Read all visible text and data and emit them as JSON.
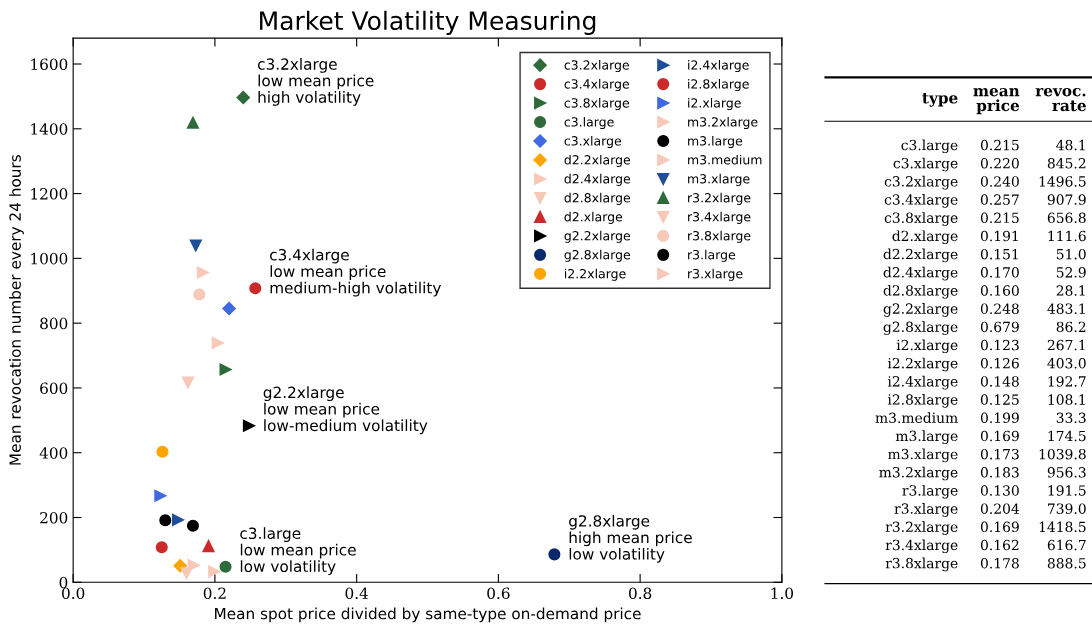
{
  "chart_data": [
    {
      "type": "scatter",
      "title": "Market Volatility Measuring",
      "xlabel": "Mean spot price divided by same-type on-demand price",
      "ylabel": "Mean revocation number every 24 hours",
      "xlim": [
        0,
        1.0
      ],
      "ylim": [
        0,
        1680
      ],
      "xticks": [
        {
          "value": 0,
          "label": "0.0"
        },
        {
          "value": 0.2,
          "label": "0.2"
        },
        {
          "value": 0.4,
          "label": "0.4"
        },
        {
          "value": 0.6,
          "label": "0.6"
        },
        {
          "value": 0.8,
          "label": "0.8"
        },
        {
          "value": 1.0,
          "label": "1.0"
        }
      ],
      "yticks": [
        0,
        200,
        400,
        600,
        800,
        1000,
        1200,
        1400,
        1600
      ],
      "grid": false,
      "legend": "top right",
      "annotations": [
        {
          "text": "c3.2xlarge\nlow mean price\nhigh volatility",
          "x": 0.24,
          "y": 1496.5
        },
        {
          "text": "c3.4xlarge\nlow mean price\nmedium-high volatility",
          "x": 0.257,
          "y": 907.9
        },
        {
          "text": "g2.2xlarge\nlow mean price\nlow-medium volatility",
          "x": 0.248,
          "y": 483.1
        },
        {
          "text": "c3.large\nlow mean price\nlow volatility",
          "x": 0.215,
          "y": 48.1
        },
        {
          "text": "g2.8xlarge\nhigh mean price\nlow volatility",
          "x": 0.679,
          "y": 86.2
        }
      ],
      "series": [
        {
          "name": "c3.large",
          "x": [
            0.215
          ],
          "values": [
            48.1
          ],
          "marker": "circle",
          "color": "#2f6b3a"
        },
        {
          "name": "c3.xlarge",
          "x": [
            0.22
          ],
          "values": [
            845.2
          ],
          "marker": "diamond",
          "color": "#4169e1"
        },
        {
          "name": "c3.2xlarge",
          "x": [
            0.24
          ],
          "values": [
            1496.5
          ],
          "marker": "diamond",
          "color": "#2f6b3a"
        },
        {
          "name": "c3.4xlarge",
          "x": [
            0.257
          ],
          "values": [
            907.9
          ],
          "marker": "circle",
          "color": "#cc2a2a"
        },
        {
          "name": "c3.8xlarge",
          "x": [
            0.215
          ],
          "values": [
            656.8
          ],
          "marker": "triangle-right",
          "color": "#2f6b3a"
        },
        {
          "name": "d2.xlarge",
          "x": [
            0.191
          ],
          "values": [
            111.6
          ],
          "marker": "triangle",
          "color": "#cc2a2a"
        },
        {
          "name": "d2.2xlarge",
          "x": [
            0.151
          ],
          "values": [
            51.0
          ],
          "marker": "diamond",
          "color": "#ffa500"
        },
        {
          "name": "d2.4xlarge",
          "x": [
            0.17
          ],
          "values": [
            52.9
          ],
          "marker": "triangle-right",
          "color": "#f8c8b8"
        },
        {
          "name": "d2.8xlarge",
          "x": [
            0.16
          ],
          "values": [
            28.1
          ],
          "marker": "triangle-down",
          "color": "#f8c8b8"
        },
        {
          "name": "g2.2xlarge",
          "x": [
            0.248
          ],
          "values": [
            483.1
          ],
          "marker": "triangle-right",
          "color": "#000000"
        },
        {
          "name": "g2.8xlarge",
          "x": [
            0.679
          ],
          "values": [
            86.2
          ],
          "marker": "circle",
          "color": "#0a2a6b"
        },
        {
          "name": "i2.xlarge",
          "x": [
            0.123
          ],
          "values": [
            267.1
          ],
          "marker": "triangle-right",
          "color": "#4169e1"
        },
        {
          "name": "i2.2xlarge",
          "x": [
            0.126
          ],
          "values": [
            403.0
          ],
          "marker": "circle",
          "color": "#ffa500"
        },
        {
          "name": "i2.4xlarge",
          "x": [
            0.148
          ],
          "values": [
            192.7
          ],
          "marker": "triangle-right",
          "color": "#1f4e99"
        },
        {
          "name": "i2.8xlarge",
          "x": [
            0.125
          ],
          "values": [
            108.1
          ],
          "marker": "circle",
          "color": "#cc2a2a"
        },
        {
          "name": "m3.medium",
          "x": [
            0.199
          ],
          "values": [
            33.3
          ],
          "marker": "triangle-right",
          "color": "#f8c8b8"
        },
        {
          "name": "m3.large",
          "x": [
            0.169
          ],
          "values": [
            174.5
          ],
          "marker": "circle",
          "color": "#000000"
        },
        {
          "name": "m3.xlarge",
          "x": [
            0.173
          ],
          "values": [
            1039.8
          ],
          "marker": "triangle-down",
          "color": "#1f4e99"
        },
        {
          "name": "m3.2xlarge",
          "x": [
            0.183
          ],
          "values": [
            956.3
          ],
          "marker": "triangle-right",
          "color": "#f8c8b8"
        },
        {
          "name": "r3.large",
          "x": [
            0.13
          ],
          "values": [
            191.5
          ],
          "marker": "circle",
          "color": "#000000"
        },
        {
          "name": "r3.xlarge",
          "x": [
            0.204
          ],
          "values": [
            739.0
          ],
          "marker": "triangle-right",
          "color": "#f8c8b8"
        },
        {
          "name": "r3.2xlarge",
          "x": [
            0.169
          ],
          "values": [
            1418.5
          ],
          "marker": "triangle",
          "color": "#2f6b3a"
        },
        {
          "name": "r3.4xlarge",
          "x": [
            0.162
          ],
          "values": [
            616.7
          ],
          "marker": "triangle-down",
          "color": "#f8c8b8"
        },
        {
          "name": "r3.8xlarge",
          "x": [
            0.178
          ],
          "values": [
            888.5
          ],
          "marker": "circle",
          "color": "#f8c8b8"
        }
      ]
    },
    {
      "type": "other",
      "xlabel": "type",
      "data_labels": true,
      "categories": [
        "c3.large",
        "c3.xlarge",
        "c3.2xlarge",
        "c3.4xlarge",
        "c3.8xlarge",
        "d2.xlarge",
        "d2.2xlarge",
        "d2.4xlarge",
        "d2.8xlarge",
        "g2.2xlarge",
        "g2.8xlarge",
        "i2.xlarge",
        "i2.2xlarge",
        "i2.4xlarge",
        "i2.8xlarge",
        "m3.medium",
        "m3.large",
        "m3.xlarge",
        "m3.2xlarge",
        "r3.large",
        "r3.xlarge",
        "r3.2xlarge",
        "r3.4xlarge",
        "r3.8xlarge"
      ],
      "series": [
        {
          "name": "mean\nprice",
          "values": [
            0.215,
            0.22,
            0.24,
            0.257,
            0.215,
            0.191,
            0.151,
            0.17,
            0.16,
            0.248,
            0.679,
            0.123,
            0.126,
            0.148,
            0.125,
            0.199,
            0.169,
            0.173,
            0.183,
            0.13,
            0.204,
            0.169,
            0.162,
            0.178
          ],
          "value_labels": [
            "0.215",
            "0.220",
            "0.240",
            "0.257",
            "0.215",
            "0.191",
            "0.151",
            "0.170",
            "0.160",
            "0.248",
            "0.679",
            "0.123",
            "0.126",
            "0.148",
            "0.125",
            "0.199",
            "0.169",
            "0.173",
            "0.183",
            "0.130",
            "0.204",
            "0.169",
            "0.162",
            "0.178"
          ]
        },
        {
          "name": "revoc.\nrate",
          "values": [
            48.1,
            845.2,
            1496.5,
            907.9,
            656.8,
            111.6,
            51.0,
            52.9,
            28.1,
            483.1,
            86.2,
            267.1,
            403.0,
            192.7,
            108.1,
            33.3,
            174.5,
            1039.8,
            956.3,
            191.5,
            739.0,
            1418.5,
            616.7,
            888.5
          ],
          "value_labels": [
            "48.1",
            "845.2",
            "1496.5",
            "907.9",
            "656.8",
            "111.6",
            "51.0",
            "52.9",
            "28.1",
            "483.1",
            "86.2",
            "267.1",
            "403.0",
            "192.7",
            "108.1",
            "33.3",
            "174.5",
            "1039.8",
            "956.3",
            "191.5",
            "739.0",
            "1418.5",
            "616.7",
            "888.5"
          ]
        }
      ]
    }
  ]
}
